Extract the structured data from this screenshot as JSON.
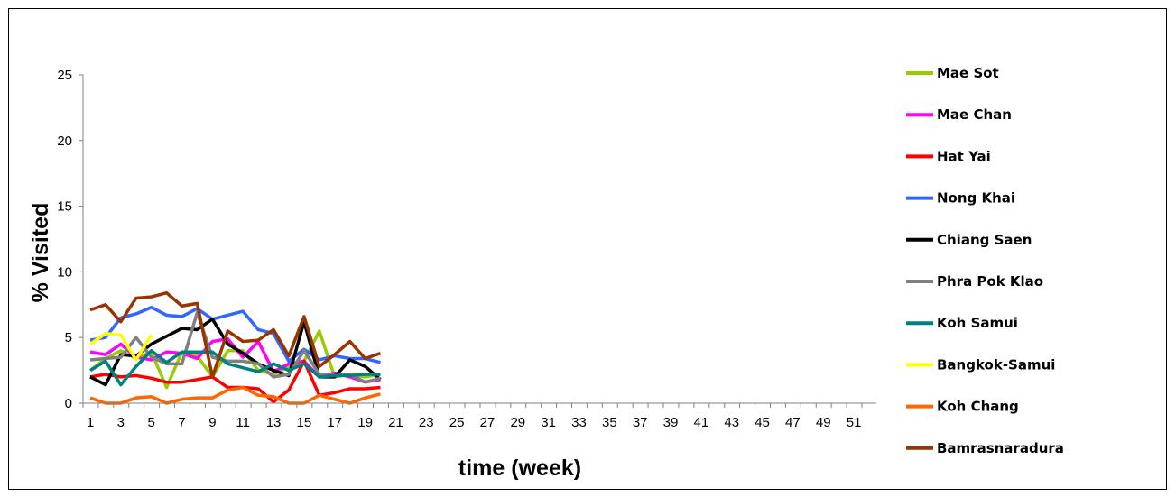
{
  "chart_data": {
    "type": "line",
    "xlabel": "time (week)",
    "ylabel": "% Visited",
    "ylim": [
      0,
      25
    ],
    "yticks": [
      0,
      5,
      10,
      15,
      20,
      25
    ],
    "xlim": [
      1,
      52
    ],
    "xticks": [
      1,
      3,
      5,
      7,
      9,
      11,
      13,
      15,
      17,
      19,
      21,
      23,
      25,
      27,
      29,
      31,
      33,
      35,
      37,
      39,
      41,
      43,
      45,
      47,
      49,
      51
    ],
    "grid": false,
    "legend": "right",
    "series": [
      {
        "name": "Mae Sot",
        "color": "#99cc00",
        "x": [
          1,
          2,
          3,
          4,
          5,
          6,
          7,
          8,
          9,
          10,
          11,
          12,
          13,
          14,
          15,
          16,
          17,
          18,
          19,
          20
        ],
        "values": [
          2.5,
          3.4,
          4.0,
          3.4,
          3.9,
          1.2,
          3.9,
          3.6,
          2.0,
          4.0,
          4.0,
          2.5,
          2.2,
          2.8,
          3.2,
          5.5,
          2.0,
          2.2,
          2.0,
          2.2
        ]
      },
      {
        "name": "Mae Chan",
        "color": "#ff00ff",
        "x": [
          1,
          2,
          3,
          4,
          5,
          6,
          7,
          8,
          9,
          10,
          11,
          12,
          13,
          14,
          15,
          16,
          17,
          18,
          19,
          20
        ],
        "values": [
          3.9,
          3.7,
          4.5,
          3.5,
          3.3,
          3.9,
          3.8,
          3.4,
          4.7,
          4.9,
          3.5,
          4.7,
          2.4,
          3.0,
          3.2,
          2.0,
          2.3,
          2.0,
          1.6,
          1.8
        ]
      },
      {
        "name": "Hat Yai",
        "color": "#ff0000",
        "x": [
          1,
          2,
          3,
          4,
          5,
          6,
          7,
          8,
          9,
          10,
          11,
          12,
          13,
          14,
          15,
          16,
          17,
          18,
          19,
          20
        ],
        "values": [
          2.0,
          2.2,
          2.0,
          2.1,
          1.9,
          1.6,
          1.6,
          1.8,
          2.0,
          1.2,
          1.2,
          1.1,
          0.1,
          1.0,
          3.2,
          0.6,
          0.8,
          1.1,
          1.1,
          1.2
        ]
      },
      {
        "name": "Nong Khai",
        "color": "#3366ff",
        "x": [
          1,
          2,
          3,
          4,
          5,
          6,
          7,
          8,
          9,
          10,
          11,
          12,
          13,
          14,
          15,
          16,
          17,
          18,
          19,
          20
        ],
        "values": [
          4.8,
          5.0,
          6.5,
          6.8,
          7.3,
          6.7,
          6.6,
          7.2,
          6.4,
          6.7,
          7.0,
          5.6,
          5.3,
          3.2,
          4.1,
          3.3,
          3.6,
          3.4,
          3.4,
          3.1
        ]
      },
      {
        "name": "Chiang Saen",
        "color": "#000000",
        "x": [
          1,
          2,
          3,
          4,
          5,
          6,
          7,
          8,
          9,
          10,
          11,
          12,
          13,
          14,
          15,
          16,
          17,
          18,
          19,
          20
        ],
        "values": [
          2.0,
          1.4,
          3.7,
          3.6,
          4.5,
          5.1,
          5.7,
          5.6,
          6.4,
          4.5,
          3.8,
          3.0,
          2.5,
          2.1,
          6.2,
          2.0,
          2.0,
          3.3,
          2.8,
          1.8
        ]
      },
      {
        "name": "Phra Pok Klao",
        "color": "#808080",
        "x": [
          1,
          2,
          3,
          4,
          5,
          6,
          7,
          8,
          9,
          10,
          11,
          12,
          13,
          14,
          15,
          16,
          17,
          18,
          19,
          20
        ],
        "values": [
          3.3,
          3.4,
          3.5,
          5.0,
          3.5,
          3.0,
          3.0,
          6.9,
          3.5,
          3.2,
          3.2,
          3.0,
          2.0,
          2.2,
          4.0,
          2.2,
          2.1,
          2.2,
          1.6,
          1.9
        ]
      },
      {
        "name": "Koh Samui",
        "color": "#008080",
        "x": [
          1,
          2,
          3,
          4,
          5,
          6,
          7,
          8,
          9,
          10,
          11,
          12,
          13,
          14,
          15,
          16,
          17,
          18,
          19,
          20
        ],
        "values": [
          2.5,
          3.2,
          1.4,
          2.8,
          4.0,
          3.1,
          3.9,
          3.9,
          3.9,
          3.0,
          2.7,
          2.4,
          3.0,
          2.5,
          3.0,
          2.0,
          2.1,
          2.1,
          2.2,
          2.2
        ]
      },
      {
        "name": "Bangkok-Samui",
        "color": "#ffff00",
        "x": [
          1,
          2,
          3,
          4,
          5
        ],
        "values": [
          4.5,
          5.3,
          5.2,
          3.3,
          5.2
        ]
      },
      {
        "name": "Koh Chang",
        "color": "#ff6600",
        "x": [
          1,
          2,
          3,
          4,
          5,
          6,
          7,
          8,
          9,
          10,
          11,
          12,
          13,
          14,
          15,
          16,
          17,
          18,
          19,
          20
        ],
        "values": [
          0.4,
          0.0,
          0.0,
          0.4,
          0.5,
          0.0,
          0.3,
          0.4,
          0.4,
          1.0,
          1.2,
          0.6,
          0.5,
          0.0,
          0.0,
          0.6,
          0.3,
          0.0,
          0.4,
          0.7
        ]
      },
      {
        "name": "Bamrasnaradura",
        "color": "#993300",
        "x": [
          1,
          2,
          3,
          4,
          5,
          6,
          7,
          8,
          9,
          10,
          11,
          12,
          13,
          14,
          15,
          16,
          17,
          18,
          19,
          20
        ],
        "values": [
          7.1,
          7.5,
          6.2,
          8.0,
          8.1,
          8.4,
          7.4,
          7.6,
          2.0,
          5.5,
          4.7,
          4.8,
          5.6,
          3.6,
          6.6,
          2.8,
          3.7,
          4.7,
          3.4,
          3.8
        ]
      }
    ]
  }
}
